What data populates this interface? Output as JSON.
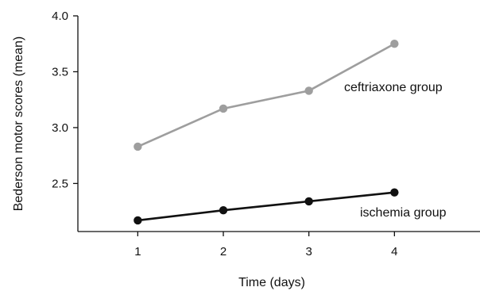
{
  "chart_data": {
    "type": "line",
    "title": "",
    "xlabel": "Time (days)",
    "ylabel": "Bederson motor scores (mean)",
    "x": [
      1,
      2,
      3,
      4
    ],
    "x_tick_labels": [
      "1",
      "2",
      "3",
      "4"
    ],
    "y_tick_labels": [
      "2.5",
      "3.0",
      "3.5",
      "4.0"
    ],
    "y_ticks": [
      2.5,
      3.0,
      3.5,
      4.0
    ],
    "xlim": [
      0.3,
      5.0
    ],
    "ylim": [
      2.07,
      4.0
    ],
    "grid": false,
    "legend": "none",
    "series": [
      {
        "name": "ceftriaxone group",
        "values": [
          2.83,
          3.17,
          3.33,
          3.75
        ],
        "color": "#9e9e9e"
      },
      {
        "name": "ischemia group",
        "values": [
          2.17,
          2.26,
          2.34,
          2.42
        ],
        "color": "#111111"
      }
    ]
  }
}
